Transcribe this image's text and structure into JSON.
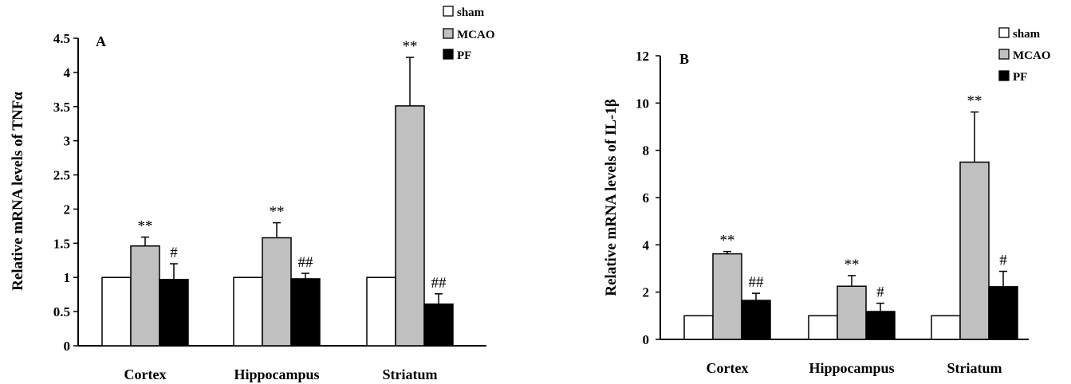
{
  "colors": {
    "sham": "#ffffff",
    "MCAO": "#c0c0c0",
    "PF": "#000000"
  },
  "chart_data": [
    {
      "type": "bar",
      "panel_label": "A",
      "ylabel": "Relative mRNA levels of TNFα",
      "ylim": [
        0,
        4.5
      ],
      "yticks": [
        "0",
        "0.5",
        "1",
        "1.5",
        "2",
        "2.5",
        "3",
        "3.5",
        "4",
        "4.5"
      ],
      "ytick_values": [
        0,
        0.5,
        1,
        1.5,
        2,
        2.5,
        3,
        3.5,
        4,
        4.5
      ],
      "categories": [
        "Cortex",
        "Hippocampus",
        "Striatum"
      ],
      "legend": [
        "sham",
        "MCAO",
        "PF"
      ],
      "legend_position": "top-right",
      "grid": false,
      "series": [
        {
          "name": "sham",
          "values": [
            1,
            1,
            1
          ],
          "errors": [
            0,
            0,
            0
          ],
          "annotations": [
            "",
            "",
            ""
          ]
        },
        {
          "name": "MCAO",
          "values": [
            1.46,
            1.58,
            3.51
          ],
          "errors": [
            0.13,
            0.22,
            0.71
          ],
          "annotations": [
            "**",
            "**",
            "**"
          ]
        },
        {
          "name": "PF",
          "values": [
            0.97,
            0.98,
            0.61
          ],
          "errors": [
            0.23,
            0.08,
            0.15
          ],
          "annotations": [
            "#",
            "##",
            "##"
          ]
        }
      ]
    },
    {
      "type": "bar",
      "panel_label": "B",
      "ylabel": "Relative mRNA levels of IL-1β",
      "ylim": [
        0,
        12
      ],
      "yticks": [
        "0",
        "2",
        "4",
        "6",
        "8",
        "10",
        "12"
      ],
      "ytick_values": [
        0,
        2,
        4,
        6,
        8,
        10,
        12
      ],
      "categories": [
        "Cortex",
        "Hippocampus",
        "Striatum"
      ],
      "legend": [
        "sham",
        "MCAO",
        "PF"
      ],
      "legend_position": "top-right",
      "grid": false,
      "series": [
        {
          "name": "sham",
          "values": [
            1,
            1,
            1
          ],
          "errors": [
            0,
            0,
            0
          ],
          "annotations": [
            "",
            "",
            ""
          ]
        },
        {
          "name": "MCAO",
          "values": [
            3.62,
            2.25,
            7.5
          ],
          "errors": [
            0.1,
            0.45,
            2.12
          ],
          "annotations": [
            "**",
            "**",
            "**"
          ]
        },
        {
          "name": "PF",
          "values": [
            1.65,
            1.18,
            2.23
          ],
          "errors": [
            0.3,
            0.35,
            0.65
          ],
          "annotations": [
            "##",
            "#",
            "#"
          ]
        }
      ]
    }
  ]
}
